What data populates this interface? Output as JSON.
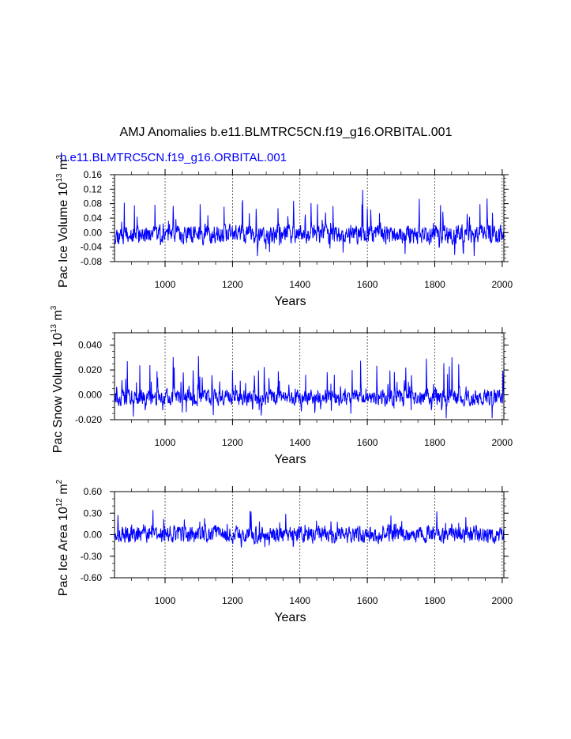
{
  "title": "AMJ Anomalies b.e11.BLMTRC5CN.f19_g16.ORBITAL.001",
  "subtitle": "b.e11.BLMTRC5CN.f19_g16.ORBITAL.001",
  "colors": {
    "series": "#0000ff",
    "axis": "#000000",
    "grid": "#000000"
  },
  "chart_data": [
    {
      "type": "line",
      "ylabel": "Pac Ice Volume 10",
      "ylabel_exp": "13",
      "ylabel_unit": "m",
      "ylabel_unit_exp": "3",
      "xlabel": "Years",
      "xlim": [
        850,
        2005
      ],
      "ylim": [
        -0.08,
        0.16
      ],
      "yticks": [
        "-0.08",
        "-0.04",
        "0.00",
        "0.04",
        "0.08",
        "0.12",
        "0.16"
      ],
      "ytick_values": [
        -0.08,
        -0.04,
        0.0,
        0.04,
        0.08,
        0.12,
        0.16
      ],
      "y_minor_step": 0.01,
      "xticks": [
        "1000",
        "1200",
        "1400",
        "1600",
        "1800",
        "2000"
      ],
      "xtick_values": [
        1000,
        1200,
        1400,
        1600,
        1800,
        2000
      ],
      "x_minor_step": 50,
      "grid": "vertical dashed",
      "noise": {
        "mean": -0.005,
        "amp": 0.022,
        "spikes": 0.1,
        "ymin": -0.065,
        "ymax": 0.135,
        "seed": 11
      }
    },
    {
      "type": "line",
      "ylabel": "Pac Snow Volume 10",
      "ylabel_exp": "13",
      "ylabel_unit": "m",
      "ylabel_unit_exp": "3",
      "xlabel": "Years",
      "xlim": [
        850,
        2005
      ],
      "ylim": [
        -0.02,
        0.05
      ],
      "yticks": [
        "-0.020",
        "0.000",
        "0.020",
        "0.040"
      ],
      "ytick_values": [
        -0.02,
        0.0,
        0.02,
        0.04
      ],
      "y_minor_step": 0.005,
      "xticks": [
        "1000",
        "1200",
        "1400",
        "1600",
        "1800",
        "2000"
      ],
      "xtick_values": [
        1000,
        1200,
        1400,
        1600,
        1800,
        2000
      ],
      "x_minor_step": 50,
      "grid": "vertical dashed",
      "noise": {
        "mean": -0.002,
        "amp": 0.0055,
        "spikes": 0.03,
        "ymin": -0.019,
        "ymax": 0.044,
        "seed": 23
      }
    },
    {
      "type": "line",
      "ylabel": "Pac Ice Area 10",
      "ylabel_exp": "12",
      "ylabel_unit": "m",
      "ylabel_unit_exp": "2",
      "xlabel": "Years",
      "xlim": [
        850,
        2005
      ],
      "ylim": [
        -0.6,
        0.6
      ],
      "yticks": [
        "-0.60",
        "-0.30",
        "0.00",
        "0.30",
        "0.60"
      ],
      "ytick_values": [
        -0.6,
        -0.3,
        0.0,
        0.3,
        0.6
      ],
      "y_minor_step": 0.1,
      "xticks": [
        "1000",
        "1200",
        "1400",
        "1600",
        "1800",
        "2000"
      ],
      "xtick_values": [
        1000,
        1200,
        1400,
        1600,
        1800,
        2000
      ],
      "x_minor_step": 50,
      "grid": "vertical dashed",
      "noise": {
        "mean": 0.0,
        "amp": 0.1,
        "spikes": 0.28,
        "ymin": -0.52,
        "ymax": 0.56,
        "seed": 37
      }
    }
  ]
}
